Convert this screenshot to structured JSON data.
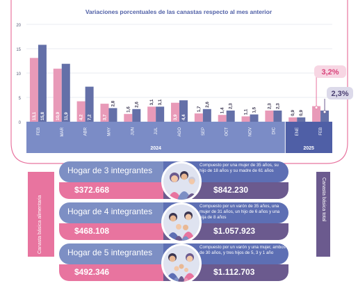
{
  "chart_data": {
    "type": "bar",
    "title": "Variaciones porcentuales de las canastas respecto al mes anterior",
    "categories": [
      "FEB",
      "MAR",
      "ABR",
      "MAY",
      "JUN",
      "JUL",
      "AGO",
      "SEP",
      "OCT",
      "NOV",
      "DIC",
      "ENE",
      "FEB"
    ],
    "years": [
      {
        "label": "2024",
        "from": 0,
        "to": 10
      },
      {
        "label": "2025",
        "from": 11,
        "to": 12
      }
    ],
    "series": [
      {
        "name": "Canasta básica alimentaria",
        "color": "#e89ab8",
        "values": [
          13.1,
          10.9,
          4.2,
          3.7,
          1.6,
          3.1,
          3.9,
          1.7,
          1.4,
          1.1,
          2.3,
          0.9,
          3.2
        ]
      },
      {
        "name": "Canasta básica total",
        "color": "#6470a8",
        "values": [
          15.8,
          11.9,
          7.2,
          2.8,
          2.6,
          3.1,
          4.4,
          2.6,
          2.3,
          1.5,
          2.3,
          0.9,
          2.3
        ]
      }
    ],
    "value_labels": [
      [
        "13,1",
        "15,8"
      ],
      [
        "10,9",
        "11,9"
      ],
      [
        "4,2",
        "7,2"
      ],
      [
        "3,7",
        "2,8"
      ],
      [
        "1,6",
        "2,6"
      ],
      [
        "3,1",
        "3,1"
      ],
      [
        "3,9",
        "4,4"
      ],
      [
        "1,7",
        "2,6"
      ],
      [
        "1,4",
        "2,3"
      ],
      [
        "1,1",
        "1,5"
      ],
      [
        "2,3",
        "2,3"
      ],
      [
        "0,9",
        "0,9"
      ]
    ],
    "highlight": {
      "cba": "3,2%",
      "cbt": "2,3%"
    },
    "yticks": [
      0,
      5,
      10,
      15,
      20
    ],
    "ylim": [
      0,
      20
    ],
    "grid": true
  },
  "colors": {
    "pink": "#e8749f",
    "pink_light": "#e89ab8",
    "blue": "#6470a8",
    "blue_dark": "#5d6fb4",
    "purple": "#6b5a8e",
    "axis_band": "#7b8cc6",
    "axis_band_dark": "#4f5fa6"
  },
  "side_labels": {
    "left": "Canasta básica alimentaria",
    "right": "Canasta básica total"
  },
  "households": [
    {
      "title": "Hogar de 3 integrantes",
      "desc": "Compuesto por una mujer de 35 años, su hijo de 18 años y su madre de 61 años",
      "cba": "$372.668",
      "cbt": "$842.230",
      "icon": "family-3-icon"
    },
    {
      "title": "Hogar de 4 integrantes",
      "desc": "Compuesto por un varón de 35 años, una mujer de 31 años, un hijo de 6 años y una hija de 8 años",
      "cba": "$468.108",
      "cbt": "$1.057.923",
      "icon": "family-4-icon"
    },
    {
      "title": "Hogar de 5 integrantes",
      "desc": "Compuesto por un varón y una mujer, ambos de 30 años, y tres hijos de 5, 3 y 1 año",
      "cba": "$492.346",
      "cbt": "$1.112.703",
      "icon": "family-5-icon"
    }
  ]
}
